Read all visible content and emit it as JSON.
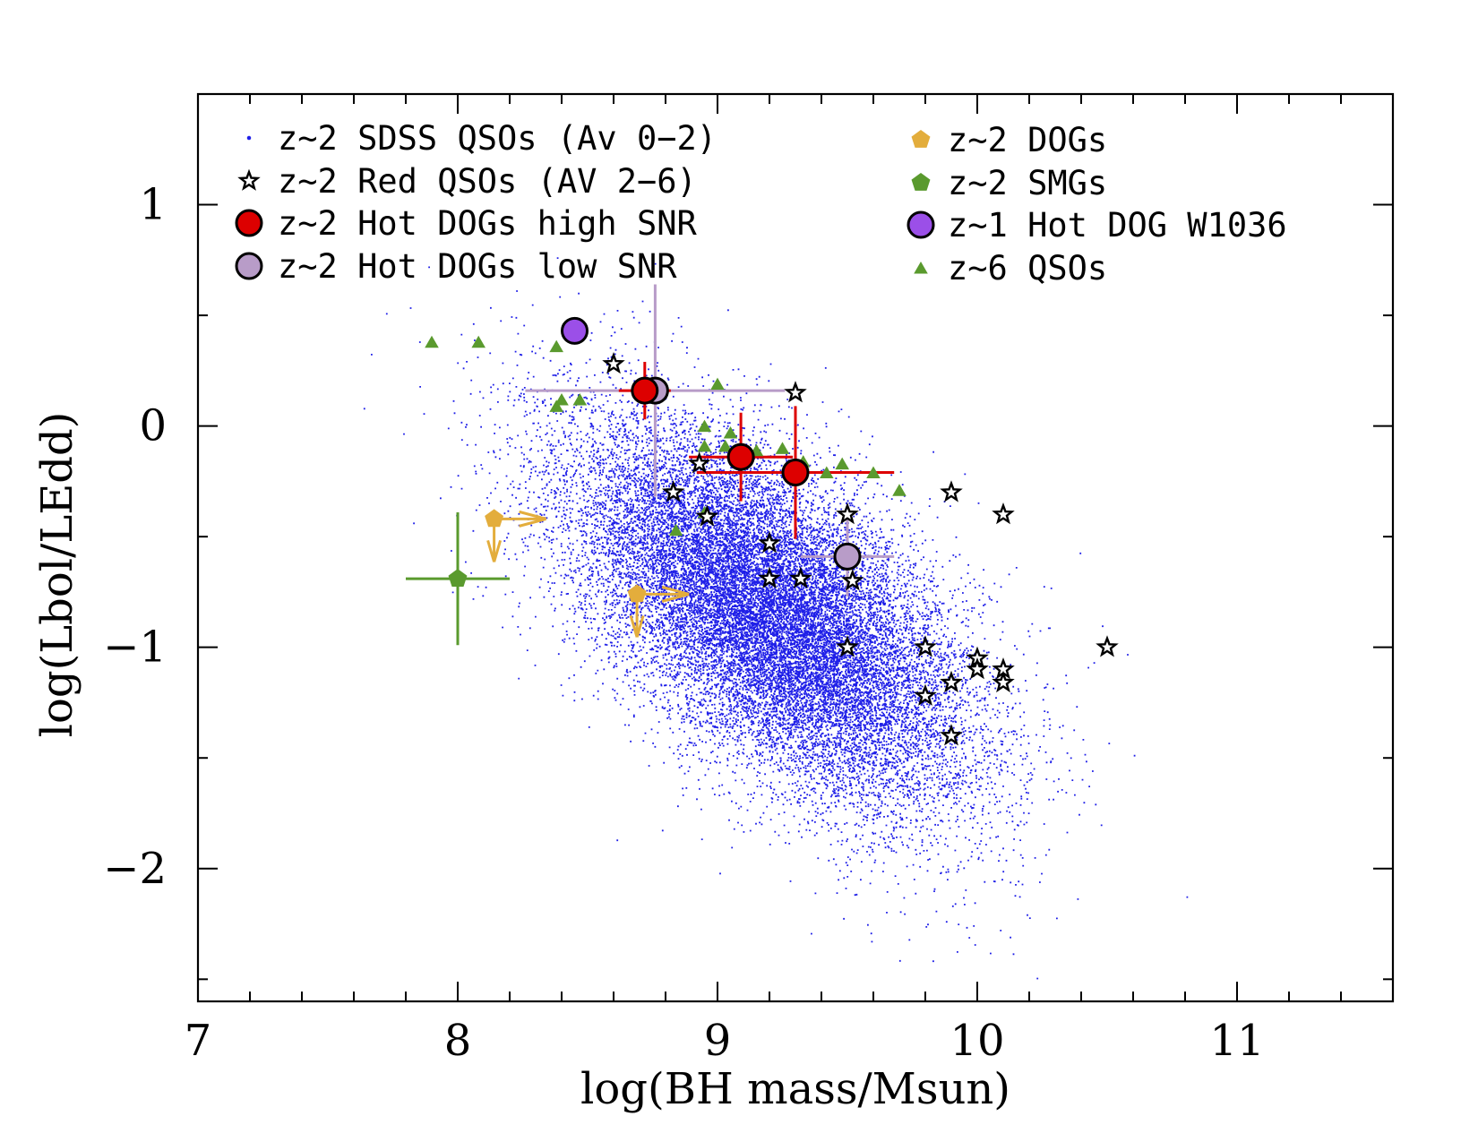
{
  "chart_data": {
    "type": "scatter",
    "xlabel": "log(BH mass/Msun)",
    "ylabel": "log(Lbol/LEdd)",
    "xlim": [
      7,
      11.6
    ],
    "ylim": [
      -2.6,
      1.5
    ],
    "xticks": [
      "7",
      "8",
      "9",
      "10",
      "11"
    ],
    "yticks": [
      "1",
      "0",
      "−1",
      "−2"
    ],
    "colors": {
      "sdss": "#1f1fe8",
      "red_qso_stroke": "#000000",
      "hot_high": "#dd0000",
      "hot_low": "#b89cc8",
      "hot_w1036": "#9b4fe8",
      "dogs": "#e3ad3c",
      "smgs": "#5a9a2e",
      "qso6": "#5a9a2e"
    },
    "legend": {
      "left": [
        {
          "label": "z~2 SDSS QSOs (Av 0−2)",
          "marker": "dot"
        },
        {
          "label": "z~2 Red QSOs (AV 2−6)",
          "marker": "star"
        },
        {
          "label": "z~2 Hot DOGs high SNR",
          "marker": "circle-red"
        },
        {
          "label": "z~2 Hot DOGs low SNR",
          "marker": "circle-lilac"
        }
      ],
      "right": [
        {
          "label": "z~2 DOGs",
          "marker": "pentagon-gold"
        },
        {
          "label": "z~2 SMGs",
          "marker": "pentagon-green"
        },
        {
          "label": "z~1 Hot DOG W1036",
          "marker": "circle-purple"
        },
        {
          "label": "z~6 QSOs",
          "marker": "triangle"
        }
      ]
    },
    "series": [
      {
        "name": "z~2 SDSS QSOs (Av 0−2)",
        "marker": "dot",
        "distribution": {
          "center": [
            9.2,
            -0.85
          ],
          "spread_x": 0.38,
          "spread_y": 0.42,
          "correlation": -0.6,
          "count": 22000
        }
      },
      {
        "name": "z~2 Red QSOs (AV 2−6)",
        "marker": "star",
        "points": [
          [
            8.6,
            0.28
          ],
          [
            9.3,
            0.15
          ],
          [
            8.93,
            -0.17
          ],
          [
            8.83,
            -0.3
          ],
          [
            8.96,
            -0.41
          ],
          [
            9.2,
            -0.53
          ],
          [
            9.2,
            -0.69
          ],
          [
            9.32,
            -0.69
          ],
          [
            9.5,
            -0.4
          ],
          [
            9.52,
            -0.7
          ],
          [
            9.9,
            -0.3
          ],
          [
            10.1,
            -0.4
          ],
          [
            9.5,
            -1.0
          ],
          [
            9.8,
            -1.0
          ],
          [
            10.0,
            -1.05
          ],
          [
            10.0,
            -1.1
          ],
          [
            10.1,
            -1.1
          ],
          [
            10.1,
            -1.16
          ],
          [
            9.9,
            -1.16
          ],
          [
            9.8,
            -1.22
          ],
          [
            9.9,
            -1.4
          ],
          [
            10.5,
            -1.0
          ]
        ]
      },
      {
        "name": "z~2 Hot DOGs high SNR",
        "marker": "circle-red",
        "points": [
          {
            "x": 8.72,
            "y": 0.16,
            "xerr": 0.1,
            "yerr": 0.13
          },
          {
            "x": 9.09,
            "y": -0.14,
            "xerr": 0.2,
            "yerr": 0.2
          },
          {
            "x": 9.3,
            "y": -0.21,
            "xerr": 0.38,
            "yerr": 0.3
          }
        ]
      },
      {
        "name": "z~2 Hot DOGs low SNR",
        "marker": "circle-lilac",
        "points": [
          {
            "x": 8.76,
            "y": 0.16,
            "xerr": 0.5,
            "yerr": 0.48
          },
          {
            "x": 9.5,
            "y": -0.59,
            "xerr": 0.18,
            "yerr": 0.18
          }
        ]
      },
      {
        "name": "z~1 Hot DOG W1036",
        "marker": "circle-purple",
        "points": [
          [
            8.45,
            0.43
          ]
        ]
      },
      {
        "name": "z~2 DOGs",
        "marker": "pentagon-gold",
        "points": [
          [
            8.14,
            -0.42
          ],
          [
            8.69,
            -0.76
          ]
        ],
        "limits": "lower limit in x, upper limit in y"
      },
      {
        "name": "z~2 SMGs",
        "marker": "pentagon-green",
        "points": [
          {
            "x": 8.0,
            "y": -0.69,
            "xerr": 0.2,
            "yerr": 0.3
          }
        ]
      },
      {
        "name": "z~6 QSOs",
        "marker": "triangle",
        "points": [
          [
            7.9,
            0.38
          ],
          [
            8.08,
            0.38
          ],
          [
            8.38,
            0.36
          ],
          [
            8.38,
            0.09
          ],
          [
            8.4,
            0.12
          ],
          [
            8.47,
            0.12
          ],
          [
            9.0,
            0.19
          ],
          [
            8.95,
            0.0
          ],
          [
            8.95,
            -0.09
          ],
          [
            9.03,
            -0.09
          ],
          [
            9.05,
            -0.03
          ],
          [
            9.15,
            -0.11
          ],
          [
            9.25,
            -0.1
          ],
          [
            9.33,
            -0.16
          ],
          [
            9.42,
            -0.21
          ],
          [
            9.48,
            -0.17
          ],
          [
            9.6,
            -0.21
          ],
          [
            9.7,
            -0.29
          ],
          [
            8.95,
            -0.39
          ],
          [
            8.84,
            -0.47
          ]
        ]
      }
    ]
  }
}
